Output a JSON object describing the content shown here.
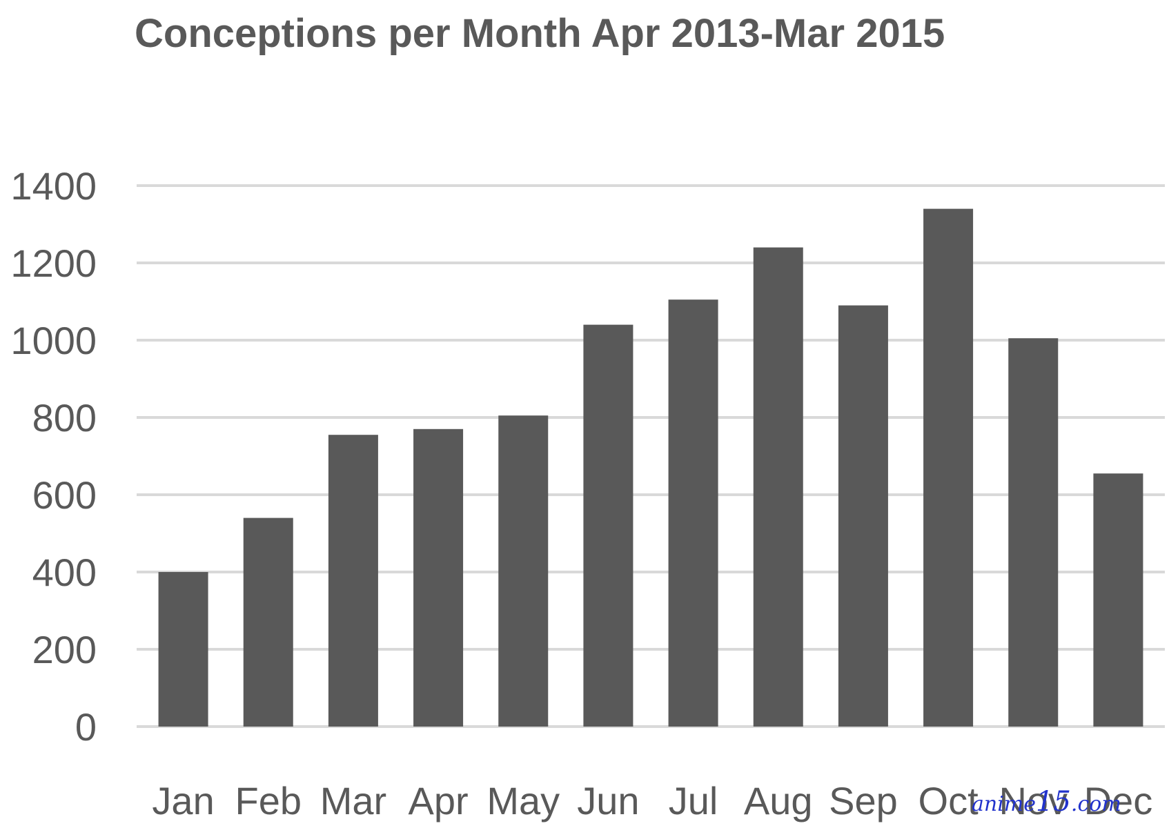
{
  "chart_data": {
    "type": "bar",
    "title": "Conceptions per Month Apr 2013-Mar 2015",
    "xlabel": "",
    "ylabel": "",
    "categories": [
      "Jan",
      "Feb",
      "Mar",
      "Apr",
      "May",
      "Jun",
      "Jul",
      "Aug",
      "Sep",
      "Oct",
      "Nov",
      "Dec"
    ],
    "values": [
      400,
      540,
      755,
      770,
      805,
      1040,
      1105,
      1240,
      1090,
      1340,
      1005,
      655
    ],
    "ylim": [
      0,
      1400
    ],
    "yticks": [
      0,
      200,
      400,
      600,
      800,
      1000,
      1200,
      1400
    ],
    "ytick_labels": [
      "0",
      "200",
      "400",
      "600",
      "800",
      "1000",
      "1200",
      "1400"
    ],
    "grid": true,
    "legend": "none",
    "colors": {
      "bar": "#595959",
      "grid": "#d9d9d9",
      "text": "#595959"
    }
  },
  "watermark": {
    "prefix": "anime",
    "number": "15",
    "suffix": ".com"
  }
}
